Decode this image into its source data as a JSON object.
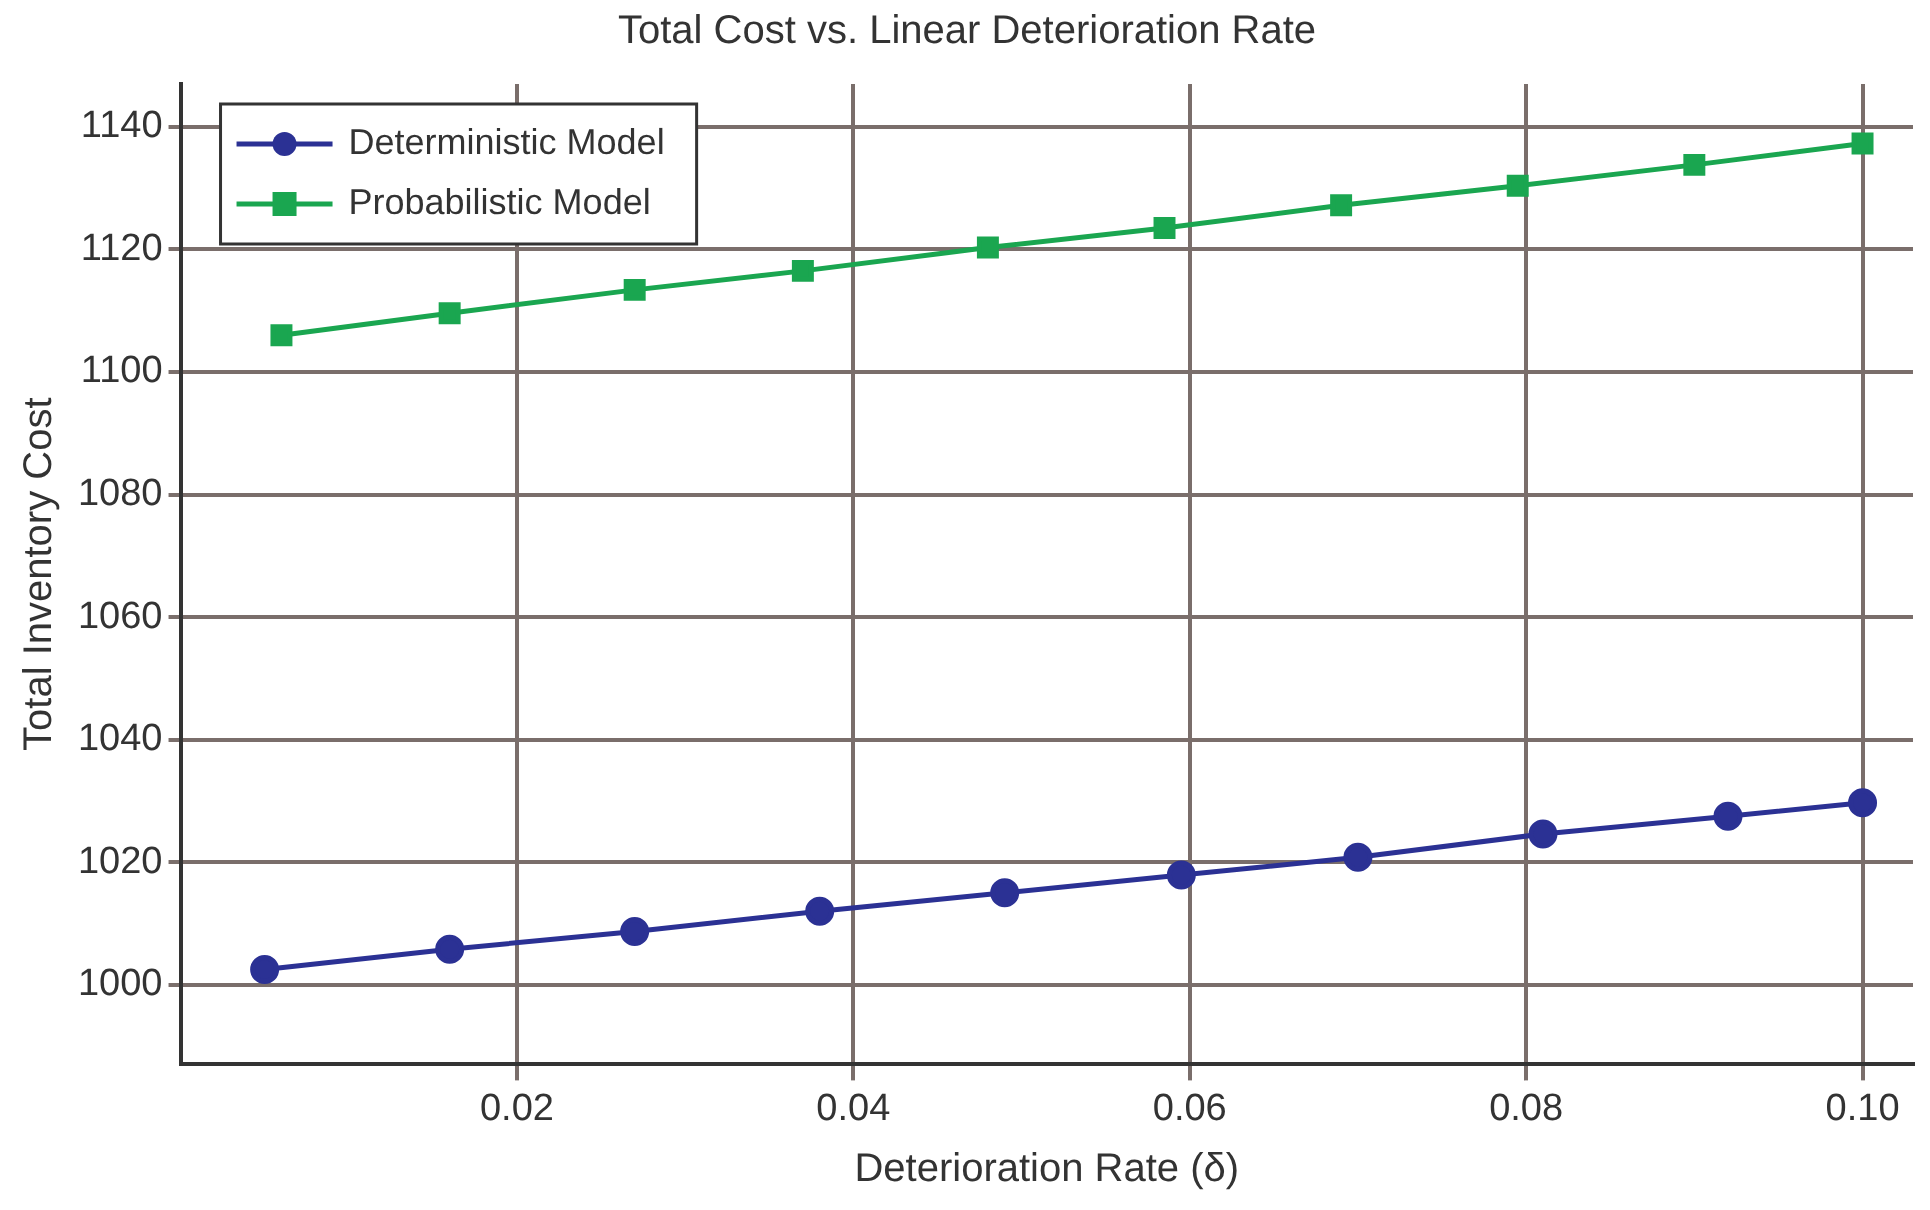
{
  "chart_data": {
    "type": "line",
    "title": "Total Cost vs. Linear Deterioration Rate",
    "xlabel": "Deterioration Rate (δ)",
    "ylabel": "Total Inventory Cost",
    "series": [
      {
        "name": "Deterministic Model",
        "color": "#2b3194",
        "marker": "circle",
        "x": [
          0.005,
          0.016,
          0.027,
          0.038,
          0.049,
          0.0595,
          0.07,
          0.081,
          0.092,
          0.1
        ],
        "values": [
          1002.5,
          1005.8,
          1008.7,
          1012.0,
          1015.0,
          1017.9,
          1020.8,
          1024.6,
          1027.5,
          1029.7
        ]
      },
      {
        "name": "Probabilistic Model",
        "color": "#1aa650",
        "marker": "square",
        "x": [
          0.006,
          0.016,
          0.027,
          0.037,
          0.048,
          0.0585,
          0.069,
          0.0795,
          0.09,
          0.1
        ],
        "values": [
          1106.0,
          1109.6,
          1113.4,
          1116.5,
          1120.3,
          1123.5,
          1127.2,
          1130.4,
          1133.8,
          1137.3
        ]
      }
    ],
    "xlim": [
      0,
      0.103
    ],
    "xticks": [
      {
        "value": 0.02,
        "label": "0.02"
      },
      {
        "value": 0.04,
        "label": "0.04"
      },
      {
        "value": 0.06,
        "label": "0.06"
      },
      {
        "value": 0.08,
        "label": "0.08"
      },
      {
        "value": 0.1,
        "label": "0.10"
      }
    ],
    "ylim": [
      987,
      1147
    ],
    "yticks": [
      1000,
      1020,
      1040,
      1060,
      1080,
      1100,
      1120,
      1140
    ],
    "grid": true,
    "legend": "top left",
    "line_style": "solid"
  }
}
